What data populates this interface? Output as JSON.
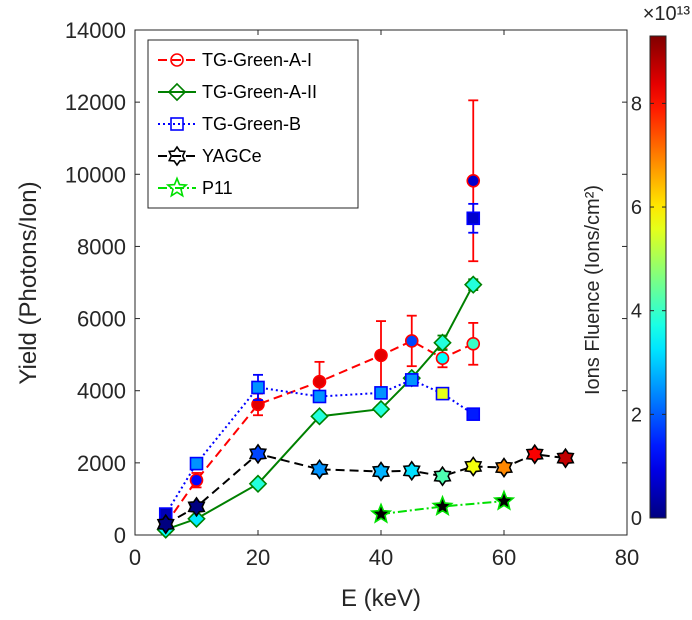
{
  "chart_data": {
    "type": "line",
    "xlabel": "E (keV)",
    "ylabel": "Yield (Photons/Ion)",
    "xlim": [
      0,
      80
    ],
    "ylim": [
      0,
      14000
    ],
    "xticks": [
      "0",
      "20",
      "40",
      "60",
      "80"
    ],
    "yticks": [
      "0",
      "2000",
      "4000",
      "6000",
      "8000",
      "10000",
      "12000",
      "14000"
    ],
    "legend_position": "top-left",
    "colorbar": {
      "label": "Ions Fluence (Ions/cm²)",
      "multiplier": "×10¹³",
      "range": [
        0,
        9.3
      ],
      "ticks": [
        "0",
        "2",
        "4",
        "6",
        "8"
      ],
      "colormap": "jet"
    },
    "series": [
      {
        "name": "TG-Green-A-I",
        "color": "#ff0000",
        "line_style": "dashed",
        "marker": "circle",
        "points": [
          {
            "x": 5,
            "y": 300,
            "err": 0,
            "fluence": 0.8
          },
          {
            "x": 10,
            "y": 1520,
            "err": 200,
            "fluence": 1.2
          },
          {
            "x": 20,
            "y": 3620,
            "err": 300,
            "fluence": 8.4
          },
          {
            "x": 30,
            "y": 4250,
            "err": 550,
            "fluence": 8.4
          },
          {
            "x": 40,
            "y": 4980,
            "err": 950,
            "fluence": 8.4
          },
          {
            "x": 45,
            "y": 5380,
            "err": 700,
            "fluence": 1.8
          },
          {
            "x": 50,
            "y": 4900,
            "err": 250,
            "fluence": 3.5
          },
          {
            "x": 55,
            "y": 5300,
            "err": 580,
            "fluence": 4.0
          },
          {
            "x": 55,
            "y": 9820,
            "err": 2230,
            "fluence": 0.7
          }
        ]
      },
      {
        "name": "TG-Green-A-II",
        "color": "#008000",
        "line_style": "solid",
        "marker": "diamond",
        "points": [
          {
            "x": 5,
            "y": 150,
            "err": 0,
            "fluence": 3.5
          },
          {
            "x": 10,
            "y": 450,
            "err": 0,
            "fluence": 3.3
          },
          {
            "x": 20,
            "y": 1420,
            "err": 0,
            "fluence": 3.8
          },
          {
            "x": 30,
            "y": 3290,
            "err": 0,
            "fluence": 3.8
          },
          {
            "x": 40,
            "y": 3490,
            "err": 100,
            "fluence": 3.8
          },
          {
            "x": 45,
            "y": 4350,
            "err": 100,
            "fluence": 3.8
          },
          {
            "x": 50,
            "y": 5330,
            "err": 200,
            "fluence": 3.8
          },
          {
            "x": 55,
            "y": 6940,
            "err": 150,
            "fluence": 3.8
          }
        ]
      },
      {
        "name": "TG-Green-B",
        "color": "#0000ff",
        "line_style": "dotted",
        "marker": "square",
        "points": [
          {
            "x": 5,
            "y": 580,
            "err": 0,
            "fluence": 0.5
          },
          {
            "x": 10,
            "y": 1980,
            "err": 0,
            "fluence": 2.5
          },
          {
            "x": 20,
            "y": 4090,
            "err": 350,
            "fluence": 2.5
          },
          {
            "x": 30,
            "y": 3840,
            "err": 100,
            "fluence": 2.5
          },
          {
            "x": 40,
            "y": 3940,
            "err": 100,
            "fluence": 2.5
          },
          {
            "x": 45,
            "y": 4300,
            "err": 100,
            "fluence": 2.5
          },
          {
            "x": 50,
            "y": 3920,
            "err": 0,
            "fluence": 5.6
          },
          {
            "x": 55,
            "y": 3350,
            "err": 0,
            "fluence": 1.4
          },
          {
            "x": 55,
            "y": 8780,
            "err": 400,
            "fluence": 0.7
          }
        ]
      },
      {
        "name": "YAGCe",
        "color": "#000000",
        "line_style": "dashed",
        "marker": "hexagram",
        "points": [
          {
            "x": 5,
            "y": 300,
            "err": 0,
            "fluence": 0.0
          },
          {
            "x": 10,
            "y": 780,
            "err": 0,
            "fluence": 0.0
          },
          {
            "x": 20,
            "y": 2250,
            "err": 0,
            "fluence": 1.8
          },
          {
            "x": 30,
            "y": 1820,
            "err": 0,
            "fluence": 2.5
          },
          {
            "x": 40,
            "y": 1760,
            "err": 0,
            "fluence": 2.8
          },
          {
            "x": 45,
            "y": 1780,
            "err": 0,
            "fluence": 3.2
          },
          {
            "x": 50,
            "y": 1630,
            "err": 0,
            "fluence": 4.2
          },
          {
            "x": 55,
            "y": 1900,
            "err": 0,
            "fluence": 5.7
          },
          {
            "x": 60,
            "y": 1870,
            "err": 0,
            "fluence": 6.9
          },
          {
            "x": 65,
            "y": 2240,
            "err": 0,
            "fluence": 8.2
          },
          {
            "x": 70,
            "y": 2130,
            "err": 0,
            "fluence": 8.7
          }
        ]
      },
      {
        "name": "P11",
        "color": "#00e000",
        "line_style": "dashdot",
        "marker": "pentagram",
        "points": [
          {
            "x": 40,
            "y": 580,
            "err": 0,
            "fluence": 0.0
          },
          {
            "x": 50,
            "y": 790,
            "err": 0,
            "fluence": 0.0
          },
          {
            "x": 60,
            "y": 940,
            "err": 0,
            "fluence": 0.0
          }
        ]
      }
    ]
  }
}
